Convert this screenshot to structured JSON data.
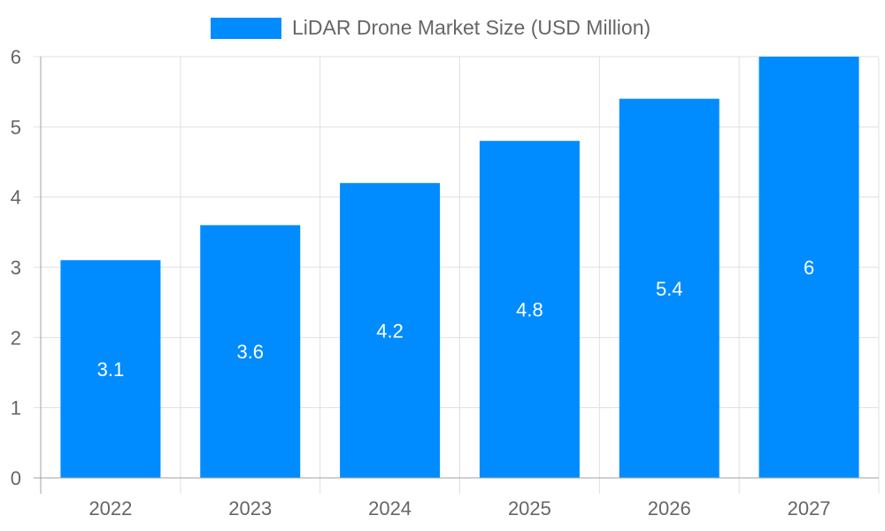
{
  "chart_data": {
    "type": "bar",
    "title": "",
    "categories": [
      "2022",
      "2023",
      "2024",
      "2025",
      "2026",
      "2027"
    ],
    "series": [
      {
        "name": "LiDAR Drone Market Size (USD Million)",
        "values": [
          3.1,
          3.6,
          4.2,
          4.8,
          5.4,
          6
        ]
      }
    ],
    "xlabel": "",
    "ylabel": "",
    "ylim": [
      0,
      6
    ],
    "yticks": [
      "0",
      "1",
      "2",
      "3",
      "4",
      "5",
      "6"
    ],
    "grid": true,
    "legend": "top-center",
    "data_labels": [
      "3.1",
      "3.6",
      "4.2",
      "4.8",
      "5.4",
      "6"
    ],
    "colors": {
      "bar": "#008cff",
      "grid": "#e0e0e0",
      "axis": "#a0a0a0",
      "text": "#666666",
      "data_label": "#ffffff"
    }
  }
}
